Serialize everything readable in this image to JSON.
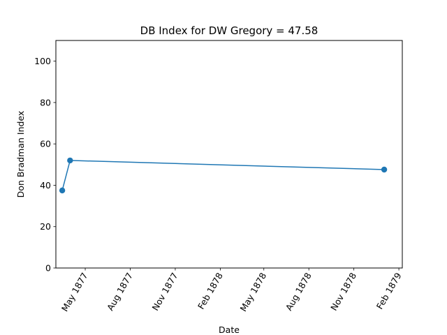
{
  "chart_data": {
    "type": "line",
    "title": "DB Index for DW Gregory = 47.58",
    "xlabel": "Date",
    "ylabel": "Don Bradman Index",
    "ylim": [
      0,
      110
    ],
    "xlim": [
      "1877-03-02",
      "1879-02-08"
    ],
    "y_ticks": [
      0,
      20,
      40,
      60,
      80,
      100
    ],
    "x_ticks": [
      {
        "date": "1877-05-01",
        "label": "May 1877"
      },
      {
        "date": "1877-08-01",
        "label": "Aug 1877"
      },
      {
        "date": "1877-11-01",
        "label": "Nov 1877"
      },
      {
        "date": "1878-02-01",
        "label": "Feb 1878"
      },
      {
        "date": "1878-05-01",
        "label": "May 1878"
      },
      {
        "date": "1878-08-01",
        "label": "Aug 1878"
      },
      {
        "date": "1878-11-01",
        "label": "Nov 1878"
      },
      {
        "date": "1879-02-01",
        "label": "Feb 1879"
      }
    ],
    "x_tick_rotation": 60,
    "grid": false,
    "series": [
      {
        "color": "#1f77b4",
        "marker": "circle",
        "points": [
          {
            "x": "1877-03-15",
            "y": 37.5
          },
          {
            "x": "1877-03-31",
            "y": 52.0
          },
          {
            "x": "1879-01-02",
            "y": 47.58
          }
        ]
      }
    ]
  }
}
